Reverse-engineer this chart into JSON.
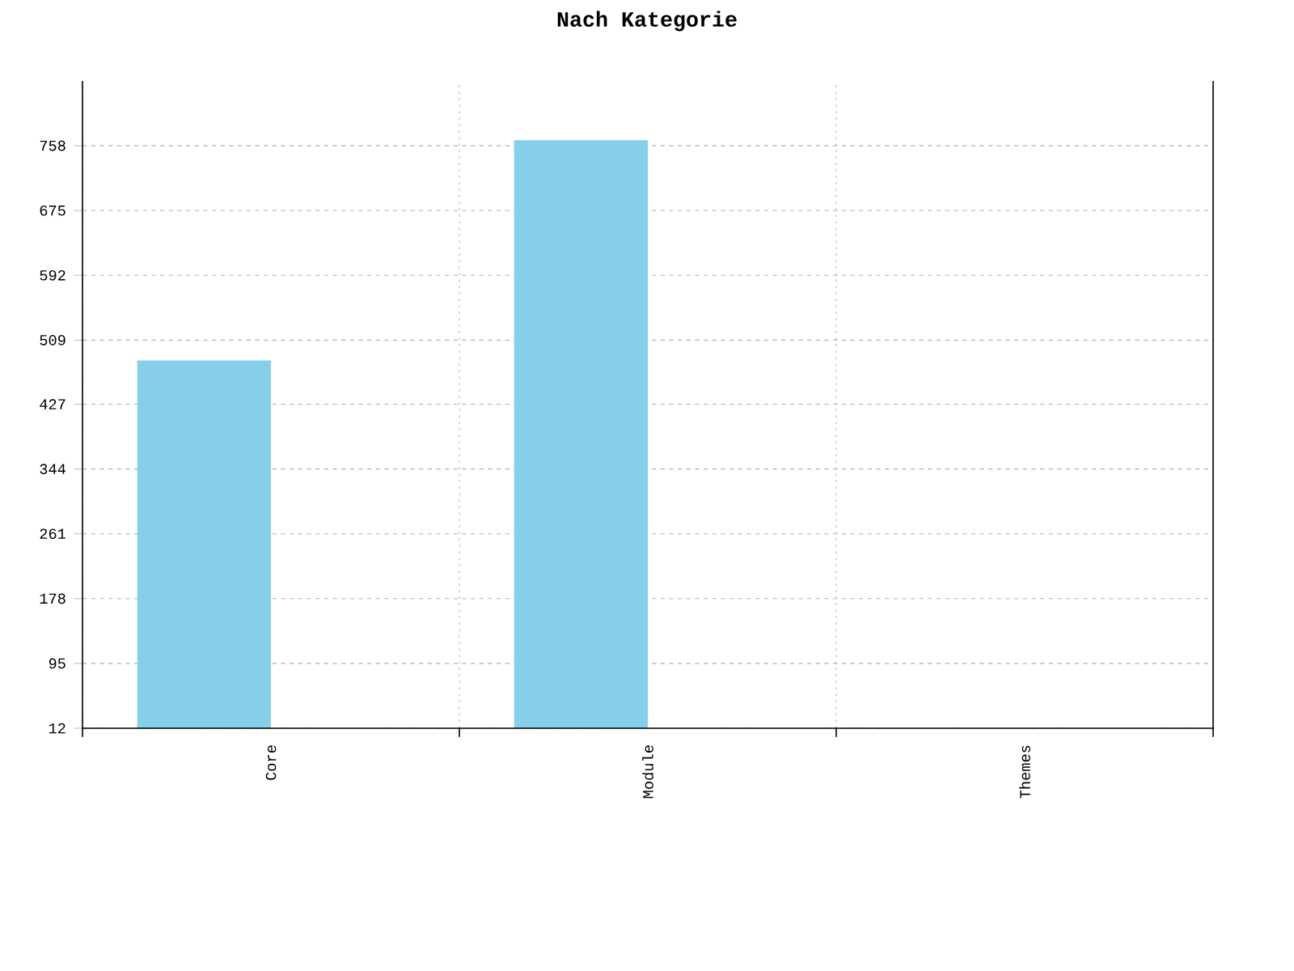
{
  "chart_data": {
    "type": "bar",
    "title": "Nach Kategorie",
    "categories": [
      "Core",
      "Module",
      "Themes"
    ],
    "values": [
      483,
      765,
      12
    ],
    "color": "#87ceeb",
    "ylim": [
      12,
      841
    ],
    "yticks": [
      12,
      95,
      178,
      261,
      344,
      427,
      509,
      592,
      675,
      758
    ],
    "grid": true
  }
}
